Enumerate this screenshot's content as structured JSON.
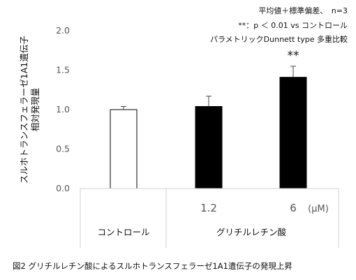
{
  "chart_data": {
    "type": "bar",
    "categories": [
      "コントロール",
      "1.2",
      "6"
    ],
    "values": [
      1.0,
      1.04,
      1.41
    ],
    "errors": [
      0.04,
      0.13,
      0.14
    ],
    "bar_fills": [
      "#ffffff",
      "#000000",
      "#000000"
    ],
    "bar_stroke": "#000000",
    "significance": [
      "",
      "",
      "**"
    ],
    "ylim": [
      0.0,
      2.0
    ],
    "yticks": [
      "0.0",
      "0.5",
      "1.0",
      "1.5",
      "2.0"
    ],
    "ylabel": [
      "スルホトランスフェラーゼ1A1遺伝子",
      "相対発現量"
    ],
    "x_unit": "(μM)",
    "group_label": "グリチルレチン酸",
    "notes": [
      "平均値＋標準偏差、　n=3",
      "**：p ＜ 0.01 vs コントロール",
      "パラメトリックDunnett type 多重比較"
    ]
  },
  "figure_caption": "図2 グリチルレチン酸によるスルホトランスフェラーゼ1A1遺伝子の発現上昇"
}
